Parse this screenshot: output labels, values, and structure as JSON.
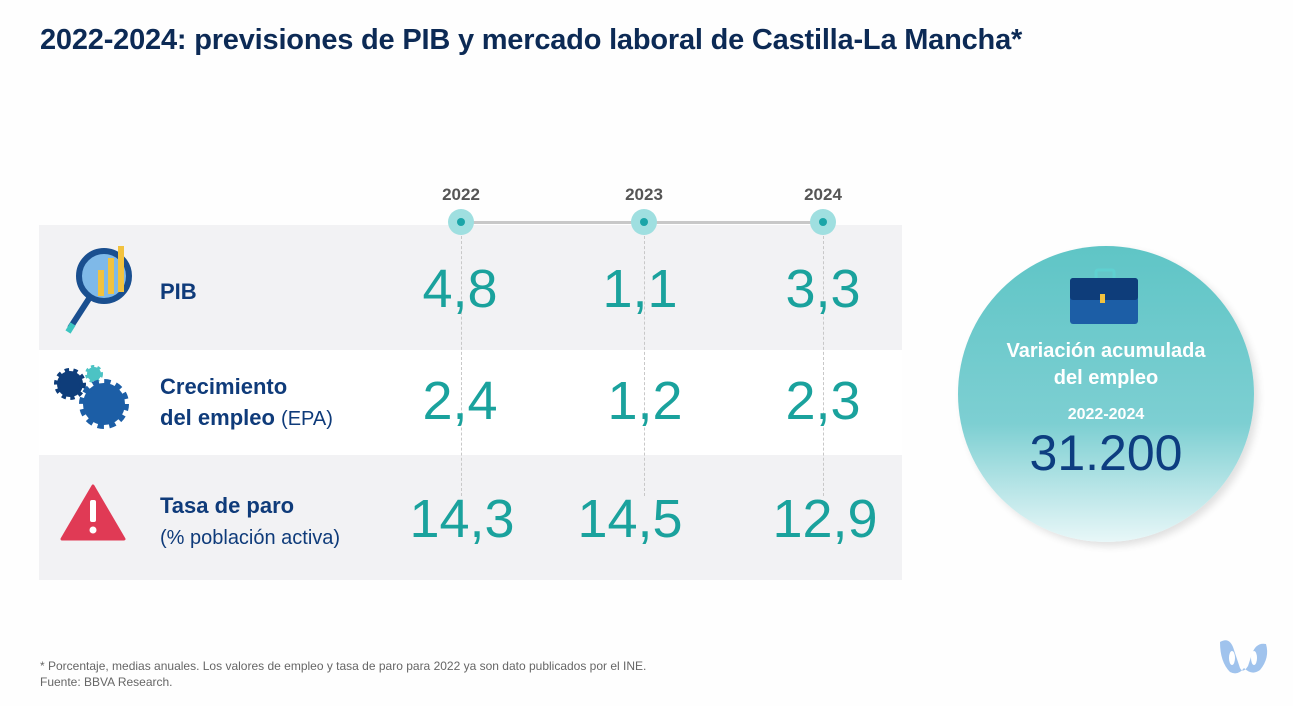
{
  "title": "2022-2024: previsiones de PIB y mercado laboral de Castilla-La Mancha*",
  "years": [
    "2022",
    "2023",
    "2024"
  ],
  "rows": [
    {
      "label": "PIB",
      "label_sub": "",
      "icon": "magnifier-chart-icon",
      "values": [
        "4,8",
        "1,1",
        "3,3"
      ]
    },
    {
      "label": "Crecimiento",
      "label2": "del empleo",
      "label_sub": "(EPA)",
      "icon": "gears-icon",
      "values": [
        "2,4",
        "1,2",
        "2,3"
      ]
    },
    {
      "label": "Tasa de paro",
      "label_sub": "(% población activa)",
      "icon": "warning-icon",
      "values": [
        "14,3",
        "14,5",
        "12,9"
      ]
    }
  ],
  "summary": {
    "icon": "briefcase-icon",
    "title_line1": "Variación acumulada",
    "title_line2": "del empleo",
    "period": "2022-2024",
    "value": "31.200"
  },
  "footnote": "* Porcentaje, medias anuales. Los valores de empleo y tasa de paro para 2022 ya son dato publicados por el INE.",
  "source": "Fuente: BBVA Research.",
  "colors": {
    "title": "#0c2a55",
    "value": "#1aa29d",
    "label": "#0f3b7a",
    "circle": "#6ccacc"
  }
}
